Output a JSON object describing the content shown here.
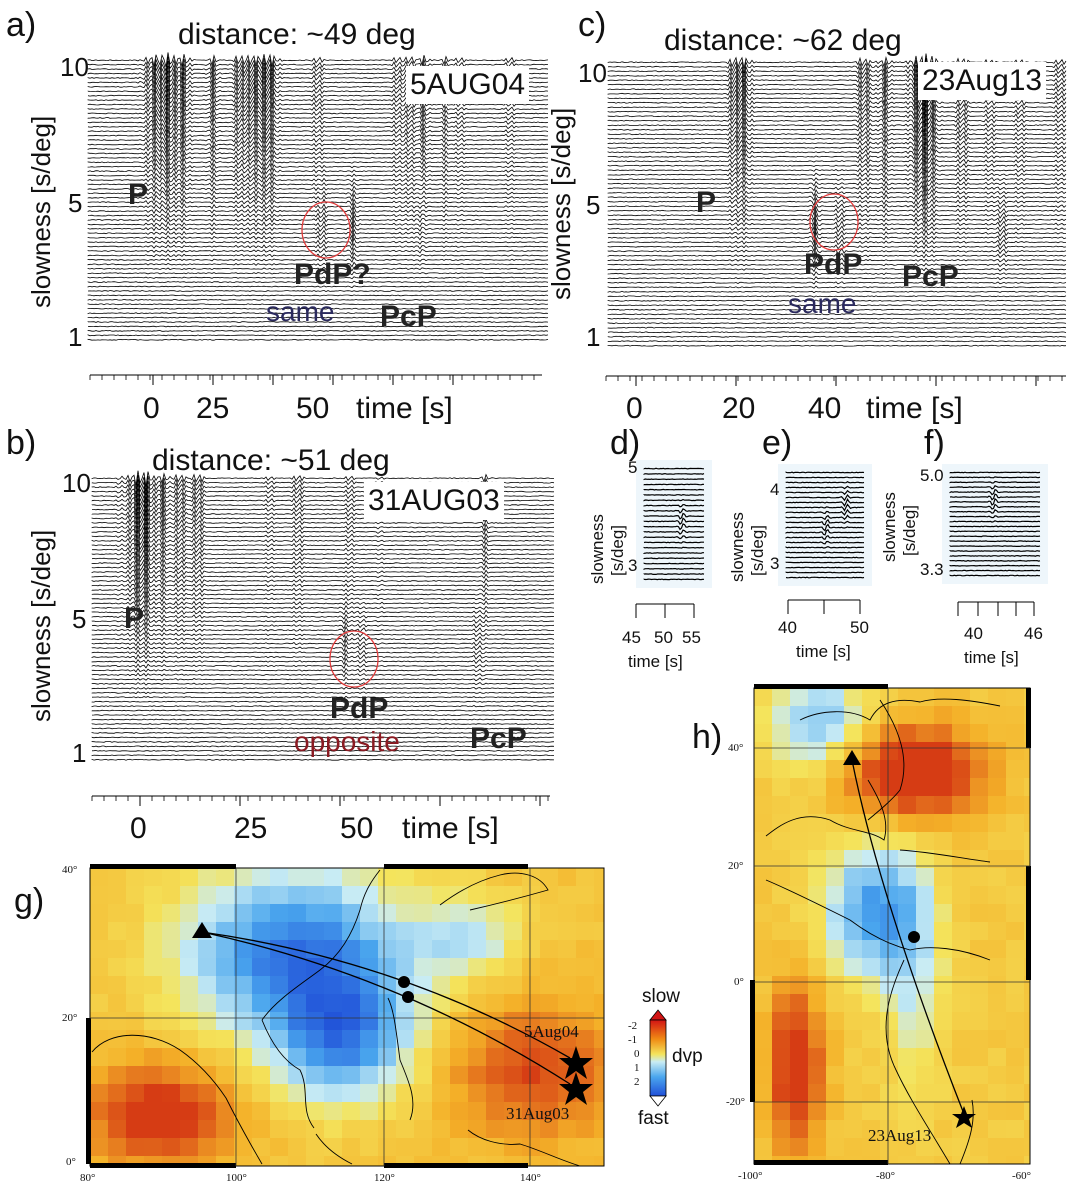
{
  "panels": {
    "a": {
      "letter": "a)",
      "distance": "distance: ~49 deg",
      "date": "5AUG04",
      "ylabel": "slowness [s/deg]",
      "yticks": [
        "10",
        "5",
        "1"
      ],
      "xticks": [
        "0",
        "25",
        "50"
      ],
      "xlabel": "time [s]",
      "phases": {
        "p": "P",
        "pdp": "PdP?",
        "pcp": "PcP"
      },
      "note": "same"
    },
    "b": {
      "letter": "b)",
      "distance": "distance: ~51 deg",
      "date": "31AUG03",
      "ylabel": "slowness [s/deg]",
      "yticks": [
        "10",
        "5",
        "1"
      ],
      "xticks": [
        "0",
        "25",
        "50"
      ],
      "xlabel": "time [s]",
      "phases": {
        "p": "P",
        "pdp": "PdP",
        "pcp": "PcP"
      },
      "note": "opposite"
    },
    "c": {
      "letter": "c)",
      "distance": "distance: ~62 deg",
      "date": "23Aug13",
      "ylabel": "slowness [s/deg]",
      "yticks": [
        "10",
        "5",
        "1"
      ],
      "xticks": [
        "0",
        "20",
        "40"
      ],
      "xlabel": "time [s]",
      "phases": {
        "p": "P",
        "pdp": "PdP",
        "pcp": "PcP"
      },
      "note": "same"
    },
    "d": {
      "letter": "d)",
      "ylabel1": "slowness",
      "ylabel2": "[s/deg]",
      "yticks": [
        "5",
        "3"
      ],
      "xticks": [
        "45",
        "50",
        "55"
      ],
      "xlabel": "time [s]"
    },
    "e": {
      "letter": "e)",
      "ylabel1": "slowness",
      "ylabel2": "[s/deg]",
      "yticks": [
        "4",
        "3"
      ],
      "xticks": [
        "40",
        "50"
      ],
      "xlabel": "time [s]"
    },
    "f": {
      "letter": "f)",
      "ylabel1": "slowness",
      "ylabel2": "[s/deg]",
      "yticks": [
        "5.0",
        "3.3"
      ],
      "xticks": [
        "40",
        "46"
      ],
      "xlabel": "time [s]"
    },
    "g": {
      "letter": "g)",
      "lat_ticks": [
        "40°",
        "20°",
        "0°"
      ],
      "lon_ticks": [
        "80°",
        "100°",
        "120°",
        "140°"
      ],
      "events": [
        "5Aug04",
        "31Aug03"
      ]
    },
    "h": {
      "letter": "h)",
      "lat_ticks": [
        "40°",
        "20°",
        "0°",
        "-20°"
      ],
      "lon_ticks": [
        "-100°",
        "-80°",
        "-60°"
      ],
      "events": [
        "23Aug13"
      ]
    }
  },
  "colorbar": {
    "top_label": "slow",
    "bottom_label": "fast",
    "var_label": "dvp",
    "ticks": [
      "-2",
      "-1",
      "0",
      "1",
      "2"
    ]
  },
  "colors": {
    "slow": "#d21414",
    "fast": "#1f5bd8",
    "circle": "#e23b3b",
    "same": "#2b2a5e",
    "opposite": "#8b1a22"
  }
}
